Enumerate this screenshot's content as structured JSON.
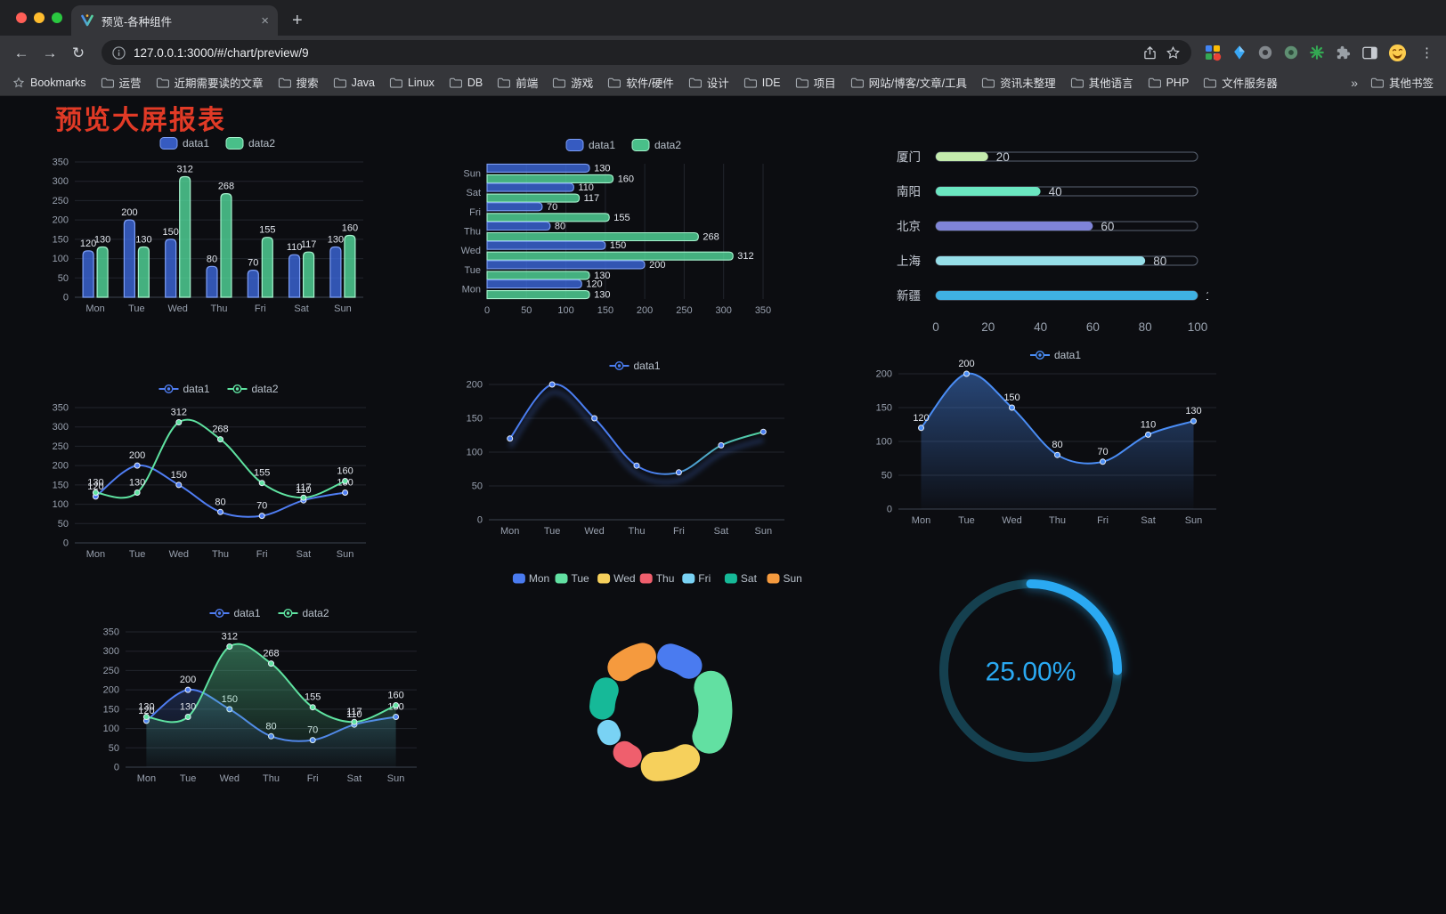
{
  "browser": {
    "tab": {
      "title": "预览-各种组件",
      "close": "×",
      "new_tab": "+"
    },
    "nav": {
      "back": "←",
      "forward": "→",
      "reload": "↻"
    },
    "address": {
      "url_host": "127.0.0.1:3000",
      "url_path": "/#/chart/preview/9"
    },
    "bookmarks_bar": {
      "first": "Bookmarks",
      "items": [
        "运营",
        "近期需要读的文章",
        "搜索",
        "Java",
        "Linux",
        "DB",
        "前端",
        "游戏",
        "软件/硬件",
        "设计",
        "IDE",
        "项目",
        "网站/博客/文章/工具",
        "资讯未整理",
        "其他语言",
        "PHP",
        "文件服务器"
      ],
      "overflow": "»",
      "other": "其他书签"
    }
  },
  "page": {
    "title": "预览大屏报表",
    "title_color": "#e13a26"
  },
  "chart_data": [
    {
      "id": "grouped-bar",
      "type": "bar",
      "categories": [
        "Mon",
        "Tue",
        "Wed",
        "Thu",
        "Fri",
        "Sat",
        "Sun"
      ],
      "series": [
        {
          "name": "data1",
          "color": "#3e6ae0",
          "border": "#7d9ef5",
          "values": [
            120,
            200,
            150,
            80,
            70,
            110,
            130
          ]
        },
        {
          "name": "data2",
          "color": "#55df9f",
          "border": "#a6f2cd",
          "values": [
            130,
            130,
            312,
            268,
            155,
            117,
            160
          ]
        }
      ],
      "ylim": [
        0,
        350
      ],
      "ytick": 50,
      "legend": "top",
      "value_labels": true
    },
    {
      "id": "horizontal-bar",
      "type": "bar-horizontal",
      "categories": [
        "Mon",
        "Tue",
        "Wed",
        "Thu",
        "Fri",
        "Sat",
        "Sun"
      ],
      "series": [
        {
          "name": "data1",
          "color": "#3e6ae0",
          "border": "#7d9ef5",
          "values": [
            120,
            200,
            150,
            80,
            70,
            110,
            130
          ]
        },
        {
          "name": "data2",
          "color": "#55df9f",
          "border": "#a6f2cd",
          "values": [
            130,
            130,
            312,
            268,
            155,
            117,
            160
          ]
        }
      ],
      "xlim": [
        0,
        350
      ],
      "xtick": 50,
      "legend": "top",
      "value_labels": true
    },
    {
      "id": "progress-bars",
      "type": "progress",
      "max": 100,
      "items": [
        {
          "label": "厦门",
          "value": 20,
          "color": "#c4ebad"
        },
        {
          "label": "南阳",
          "value": 40,
          "color": "#6be6c1"
        },
        {
          "label": "北京",
          "value": 60,
          "color": "#7f84d8"
        },
        {
          "label": "上海",
          "value": 80,
          "color": "#96dee8"
        },
        {
          "label": "新疆",
          "value": 100,
          "color": "#3fb1e3"
        }
      ],
      "axis_ticks": [
        0,
        20,
        40,
        60,
        80,
        100
      ]
    },
    {
      "id": "line-two-series",
      "type": "line",
      "categories": [
        "Mon",
        "Tue",
        "Wed",
        "Thu",
        "Fri",
        "Sat",
        "Sun"
      ],
      "series": [
        {
          "name": "data1",
          "color": "#4f7df2",
          "values": [
            120,
            200,
            150,
            80,
            70,
            110,
            130
          ]
        },
        {
          "name": "data2",
          "color": "#5fe3a1",
          "values": [
            130,
            130,
            312,
            268,
            155,
            117,
            160
          ]
        }
      ],
      "ylim": [
        0,
        350
      ],
      "ytick": 50,
      "value_labels": true
    },
    {
      "id": "line-gradient",
      "type": "line",
      "categories": [
        "Mon",
        "Tue",
        "Wed",
        "Thu",
        "Fri",
        "Sat",
        "Sun"
      ],
      "series": [
        {
          "name": "data1",
          "color": "#4a7df0",
          "gradient": [
            "#4a7df0",
            "#52d69e"
          ],
          "values": [
            120,
            200,
            150,
            80,
            70,
            110,
            130
          ]
        }
      ],
      "ylim": [
        0,
        200
      ],
      "ytick": 50,
      "value_labels": false,
      "shadow": true
    },
    {
      "id": "line-area",
      "type": "line",
      "categories": [
        "Mon",
        "Tue",
        "Wed",
        "Thu",
        "Fri",
        "Sat",
        "Sun"
      ],
      "series": [
        {
          "name": "data1",
          "color": "#4a8df5",
          "area": 0.45,
          "values": [
            120,
            200,
            150,
            80,
            70,
            110,
            130
          ]
        }
      ],
      "ylim": [
        0,
        200
      ],
      "ytick": 50,
      "value_labels": true
    },
    {
      "id": "line-area-two",
      "type": "line",
      "categories": [
        "Mon",
        "Tue",
        "Wed",
        "Thu",
        "Fri",
        "Sat",
        "Sun"
      ],
      "series": [
        {
          "name": "data1",
          "color": "#4f7df2",
          "area": 0.22,
          "values": [
            120,
            200,
            150,
            80,
            70,
            110,
            130
          ]
        },
        {
          "name": "data2",
          "color": "#5fe3a1",
          "area": 0.4,
          "values": [
            130,
            130,
            312,
            268,
            155,
            117,
            160
          ]
        }
      ],
      "ylim": [
        0,
        350
      ],
      "ytick": 50,
      "value_labels": true
    },
    {
      "id": "donut",
      "type": "pie",
      "items": [
        {
          "label": "Mon",
          "value": 120,
          "color": "#4a7bf0"
        },
        {
          "label": "Tue",
          "value": 200,
          "color": "#62e0a2"
        },
        {
          "label": "Wed",
          "value": 150,
          "color": "#f6d05c"
        },
        {
          "label": "Thu",
          "value": 80,
          "color": "#ef5f6d"
        },
        {
          "label": "Fri",
          "value": 70,
          "color": "#79d2f4"
        },
        {
          "label": "Sat",
          "value": 110,
          "color": "#16b998"
        },
        {
          "label": "Sun",
          "value": 130,
          "color": "#f59a3e"
        }
      ],
      "legend_position": "top"
    },
    {
      "id": "gauge",
      "type": "gauge",
      "value": 25,
      "max": 100,
      "display": "25.00%",
      "color": "#2aa9f2",
      "track": "#15404f"
    }
  ]
}
